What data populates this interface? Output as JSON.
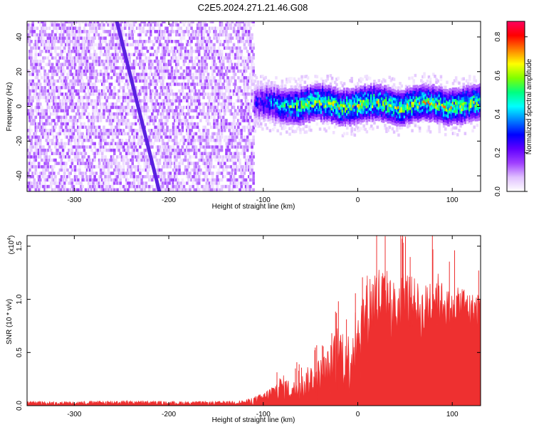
{
  "title": "C2E5.2024.271.21.46.G08",
  "chart_data": [
    {
      "type": "heatmap",
      "title": "C2E5.2024.271.21.46.G08",
      "xlabel": "Height of straight line (km)",
      "ylabel": "Frequency (Hz)",
      "xlim": [
        -350,
        130
      ],
      "ylim": [
        -49,
        49
      ],
      "xticks": [
        -300,
        -200,
        -100,
        0,
        100
      ],
      "yticks": [
        -40,
        -20,
        0,
        20,
        40
      ],
      "colorbar": {
        "label": "Normalized spectral amplitude",
        "range": [
          0.0,
          0.88
        ],
        "ticks": [
          0.0,
          0.2,
          0.4,
          0.6,
          0.8
        ],
        "colors": [
          "#ffffff",
          "#e0c0ff",
          "#a040ff",
          "#6000ff",
          "#0000ff",
          "#0080ff",
          "#00ffff",
          "#00ff80",
          "#80ff00",
          "#ffff00",
          "#ff8000",
          "#ff0000",
          "#ff0060"
        ]
      },
      "regions": [
        {
          "name": "broadband noise",
          "x_range": [
            -350,
            -110
          ],
          "freq_range": [
            -49,
            49
          ],
          "amplitude_range": [
            0.02,
            0.15
          ]
        },
        {
          "name": "signal band",
          "x_range": [
            -110,
            130
          ],
          "center_freq": 0,
          "half_width_hz": 10,
          "amplitude_range": [
            0.1,
            0.75
          ]
        }
      ],
      "streak": {
        "x_start": -255,
        "f_start": 49,
        "x_end": -210,
        "f_end": -49
      }
    },
    {
      "type": "area",
      "title": "",
      "xlabel": "Height of straight line (km)",
      "ylabel": "SNR (10 * v/v)",
      "scale_label": "(x10",
      "scale_exp": "4",
      "xlim": [
        -350,
        130
      ],
      "ylim": [
        0.0,
        1.6
      ],
      "xticks": [
        -300,
        -200,
        -100,
        0,
        100
      ],
      "yticks": [
        0.0,
        0.5,
        1.0,
        1.5
      ],
      "color": "#ee3030",
      "envelope": {
        "x": [
          -350,
          -300,
          -250,
          -200,
          -150,
          -120,
          -100,
          -90,
          -80,
          -70,
          -60,
          -50,
          -40,
          -30,
          -20,
          -10,
          0,
          10,
          20,
          30,
          40,
          50,
          60,
          70,
          80,
          90,
          100,
          110,
          120,
          130
        ],
        "low": [
          0.0,
          0.0,
          0.0,
          0.0,
          0.0,
          0.0,
          0.0,
          0.0,
          0.0,
          0.0,
          0.0,
          0.0,
          0.0,
          0.0,
          0.0,
          0.0,
          0.15,
          0.3,
          0.45,
          0.5,
          0.45,
          0.55,
          0.6,
          0.5,
          0.6,
          0.7,
          0.65,
          0.7,
          0.65,
          0.65
        ],
        "high": [
          0.04,
          0.04,
          0.05,
          0.04,
          0.04,
          0.05,
          0.12,
          0.2,
          0.3,
          0.22,
          0.28,
          0.4,
          0.45,
          0.55,
          0.8,
          0.7,
          0.95,
          1.25,
          1.35,
          1.3,
          1.15,
          1.3,
          1.2,
          1.1,
          1.35,
          1.15,
          1.05,
          1.15,
          1.05,
          1.1
        ]
      }
    }
  ]
}
